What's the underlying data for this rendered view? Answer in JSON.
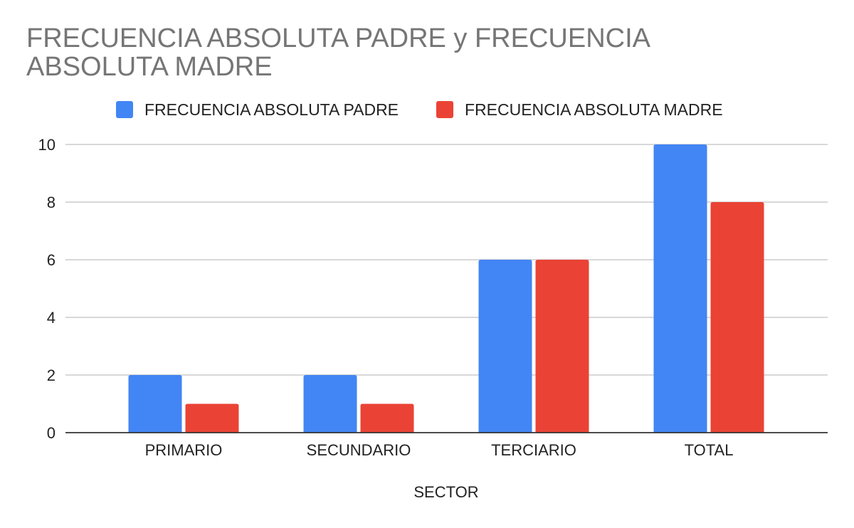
{
  "chart_data": {
    "type": "bar",
    "title": "FRECUENCIA ABSOLUTA PADRE y FRECUENCIA ABSOLUTA MADRE",
    "xlabel": "SECTOR",
    "ylabel": "",
    "categories": [
      "PRIMARIO",
      "SECUNDARIO",
      "TERCIARIO",
      "TOTAL"
    ],
    "series": [
      {
        "name": "FRECUENCIA ABSOLUTA PADRE",
        "values": [
          2,
          2,
          6,
          10
        ],
        "color": "#4285f4"
      },
      {
        "name": "FRECUENCIA ABSOLUTA MADRE",
        "values": [
          1,
          1,
          6,
          8
        ],
        "color": "#ea4335"
      }
    ],
    "ylim": [
      0,
      10
    ],
    "yticks": [
      0,
      2,
      4,
      6,
      8,
      10
    ],
    "grid": true,
    "legend_position": "top"
  }
}
